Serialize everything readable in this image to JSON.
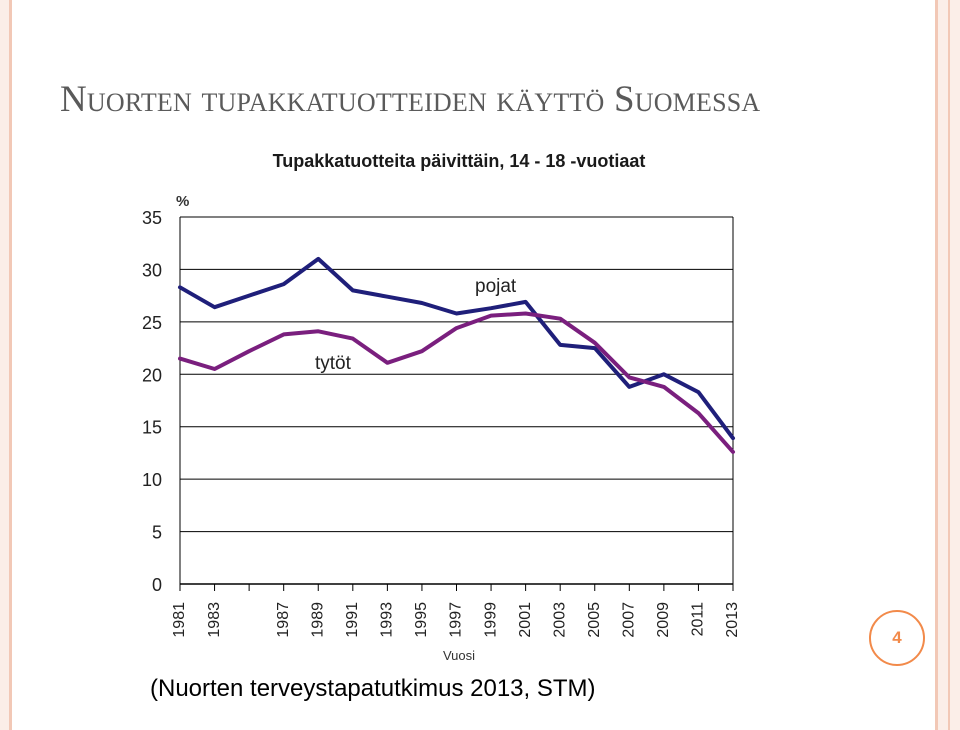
{
  "slide": {
    "title": "Nuorten tupakkatuotteiden käyttö Suomessa",
    "page_number": "4",
    "source": "(Nuorten terveystapatutkimus 2013, STM)"
  },
  "colors": {
    "pojat": "#1f1f7a",
    "tytot": "#7a1f7e",
    "accent": "#f28a4a"
  },
  "chart_data": {
    "type": "line",
    "title": "Tupakkatuotteita päivittäin, 14 - 18 -vuotiaat",
    "ylabel": "%",
    "xlabel": "Vuosi",
    "ylim": [
      0,
      35
    ],
    "xlim": [
      1981,
      2013
    ],
    "yticks": [
      0,
      5,
      10,
      15,
      20,
      25,
      30,
      35
    ],
    "xticks": [
      1981,
      1983,
      1987,
      1989,
      1991,
      1993,
      1995,
      1997,
      1999,
      2001,
      2003,
      2005,
      2007,
      2009,
      2011,
      2013
    ],
    "grid": true,
    "series": [
      {
        "name": "pojat",
        "x": [
          1981,
          1983,
          1985,
          1987,
          1989,
          1991,
          1993,
          1995,
          1997,
          1999,
          2001,
          2003,
          2005,
          2007,
          2009,
          2011,
          2013
        ],
        "values": [
          28.3,
          26.4,
          27.5,
          28.6,
          31.0,
          28.0,
          27.4,
          26.8,
          25.8,
          26.3,
          26.9,
          22.8,
          22.5,
          18.8,
          20.0,
          18.3,
          13.9
        ]
      },
      {
        "name": "tytöt",
        "x": [
          1981,
          1983,
          1985,
          1987,
          1989,
          1991,
          1993,
          1995,
          1997,
          1999,
          2001,
          2003,
          2005,
          2007,
          2009,
          2011,
          2013
        ],
        "values": [
          21.5,
          20.5,
          22.2,
          23.8,
          24.1,
          23.4,
          21.1,
          22.2,
          24.4,
          25.6,
          25.8,
          25.3,
          23.0,
          19.7,
          18.8,
          16.3,
          12.6
        ]
      }
    ]
  }
}
